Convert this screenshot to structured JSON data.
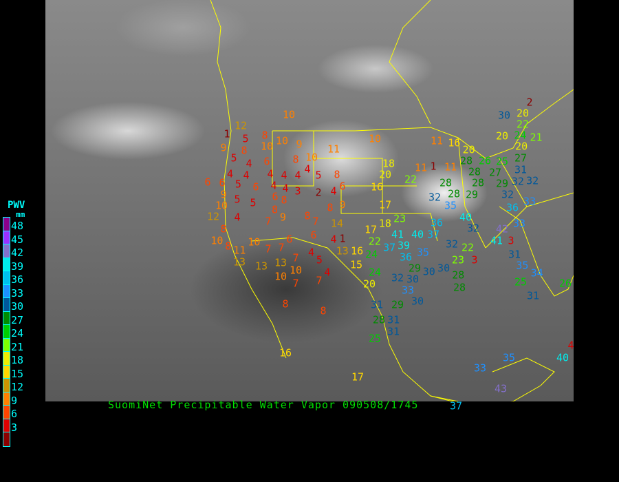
{
  "title": "SuomiNet Precipitable Water Vapor 090508/1745",
  "legend": {
    "title": "PWV",
    "unit": "mm",
    "labels": [
      "48",
      "45",
      "42",
      "39",
      "36",
      "33",
      "30",
      "27",
      "24",
      "21",
      "18",
      "15",
      "12",
      "9",
      "6",
      "3"
    ],
    "colors": [
      "#8b008b",
      "#9b30ff",
      "#8470cc",
      "#00eeee",
      "#00bfef",
      "#1e90ff",
      "#00589a",
      "#008b00",
      "#00cd00",
      "#7fff00",
      "#eeee00",
      "#ffd700",
      "#cd9500",
      "#ff8000",
      "#ff4500",
      "#dd0000",
      "#8b0000"
    ]
  },
  "border_color": "#ffff00",
  "stations": [
    10,
    12,
    1,
    9,
    5,
    8,
    10,
    9,
    8,
    10,
    11,
    10,
    5,
    4,
    6,
    8,
    10,
    4,
    4,
    4,
    4,
    4,
    4,
    5,
    8,
    6,
    6,
    5,
    6,
    4,
    4,
    3,
    2,
    4,
    6,
    9,
    5,
    5,
    6,
    8,
    10,
    12,
    4,
    8,
    9,
    7,
    8,
    7,
    8,
    9,
    14,
    8,
    10,
    8,
    11,
    13,
    13,
    10,
    7,
    7,
    6,
    6,
    4,
    1,
    13,
    7,
    4,
    5,
    10,
    10,
    7,
    7,
    4,
    8,
    8,
    13,
    16,
    15,
    24,
    20,
    17,
    18,
    23,
    22,
    41,
    37,
    39,
    24,
    36,
    17,
    16,
    18,
    20,
    22,
    11,
    1,
    11,
    11,
    16,
    20,
    28,
    26,
    25,
    27,
    28,
    28,
    28,
    28,
    29,
    32,
    32,
    35,
    29,
    27,
    32,
    33,
    36,
    33,
    42,
    40,
    36,
    37,
    40,
    32,
    41,
    3,
    32,
    22,
    23,
    3,
    35,
    29,
    30,
    30,
    32,
    33,
    30,
    28,
    28,
    30,
    31,
    29,
    28,
    31,
    31,
    25,
    31,
    35,
    34,
    25,
    31,
    26,
    20,
    20,
    2,
    22,
    24,
    21,
    31,
    32,
    30,
    20,
    16,
    17,
    33,
    35,
    37,
    43,
    40,
    4
  ]
}
